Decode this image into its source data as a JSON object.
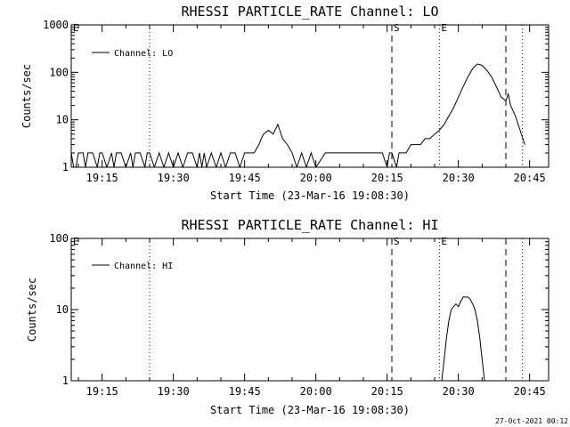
{
  "footer": {
    "timestamp": "27-Oct-2021 00:12"
  },
  "chart_data": [
    {
      "type": "line",
      "title": "RHESSI PARTICLE_RATE Channel: LO",
      "xlabel": "Start Time (23-Mar-16 19:08:30)",
      "ylabel": "Counts/sec",
      "yscale": "log",
      "xlim": [
        "19:08:30",
        "20:49:00"
      ],
      "ylim": [
        1,
        1000
      ],
      "xticks": [
        "19:15",
        "19:30",
        "19:45",
        "20:00",
        "20:15",
        "20:30",
        "20:45"
      ],
      "yticks": [
        "1",
        "10",
        "100",
        "1000"
      ],
      "legend": {
        "position": "top-left",
        "entries": [
          "Channel: LO"
        ]
      },
      "grid": false,
      "markers": [
        {
          "time": "19:08:30",
          "style": "none",
          "label": "E"
        },
        {
          "time": "19:25:00",
          "style": "dotted",
          "label": ""
        },
        {
          "time": "20:16:00",
          "style": "dashed",
          "label": "S"
        },
        {
          "time": "20:26:00",
          "style": "dotted",
          "label": "E"
        },
        {
          "time": "20:40:00",
          "style": "dashed",
          "label": ""
        },
        {
          "time": "20:43:30",
          "style": "dotted",
          "label": ""
        }
      ],
      "series": [
        {
          "name": "Channel: LO",
          "x": [
            "19:08:30",
            "19:09:00",
            "19:09:30",
            "19:10:00",
            "19:11:00",
            "19:11:30",
            "19:12:00",
            "19:13:00",
            "19:14:00",
            "19:14:30",
            "19:15:00",
            "19:16:00",
            "19:17:00",
            "19:17:30",
            "19:18:00",
            "19:19:00",
            "19:20:00",
            "19:21:00",
            "19:21:30",
            "19:22:00",
            "19:23:00",
            "19:24:00",
            "19:24:30",
            "19:25:00",
            "19:26:00",
            "19:27:00",
            "19:28:00",
            "19:29:00",
            "19:30:00",
            "19:31:00",
            "19:32:00",
            "19:33:00",
            "19:34:00",
            "19:35:00",
            "19:35:30",
            "19:36:00",
            "19:36:30",
            "19:37:00",
            "19:38:00",
            "19:39:00",
            "19:40:00",
            "19:41:00",
            "19:42:00",
            "19:43:00",
            "19:44:00",
            "19:45:00",
            "19:46:00",
            "19:47:00",
            "19:48:00",
            "19:48:30",
            "19:49:00",
            "19:50:00",
            "19:51:00",
            "19:52:00",
            "19:53:00",
            "19:54:00",
            "19:55:00",
            "19:56:00",
            "19:57:00",
            "19:58:00",
            "19:59:00",
            "20:00:00",
            "20:02:00",
            "20:04:00",
            "20:05:00",
            "20:06:00",
            "20:07:00",
            "20:08:00",
            "20:09:00",
            "20:10:00",
            "20:11:00",
            "20:12:00",
            "20:13:00",
            "20:14:00",
            "20:15:00",
            "20:15:30",
            "20:16:00",
            "20:17:00",
            "20:17:30",
            "20:18:00",
            "20:19:00",
            "20:20:00",
            "20:21:00",
            "20:22:00",
            "20:23:00",
            "20:24:00",
            "20:25:00",
            "20:26:00",
            "20:27:00",
            "20:28:00",
            "20:29:00",
            "20:30:00",
            "20:31:00",
            "20:32:00",
            "20:33:00",
            "20:34:00",
            "20:35:00",
            "20:36:00",
            "20:37:00",
            "20:38:00",
            "20:39:00",
            "20:40:00",
            "20:40:30",
            "20:41:00",
            "20:42:00",
            "20:43:00",
            "20:44:00"
          ],
          "y": [
            2,
            1,
            1,
            2,
            2,
            1,
            2,
            2,
            1,
            2,
            2,
            1,
            2,
            1,
            2,
            2,
            1,
            2,
            1,
            2,
            2,
            1,
            2,
            2,
            1,
            2,
            1,
            2,
            1,
            2,
            1,
            2,
            2,
            1,
            2,
            1,
            2,
            1,
            2,
            1,
            2,
            1,
            2,
            2,
            1,
            2,
            2,
            2,
            3,
            4,
            5,
            6,
            5,
            8,
            4,
            3,
            2,
            1,
            2,
            1,
            2,
            1,
            2,
            2,
            2,
            2,
            2,
            2,
            2,
            2,
            2,
            2,
            2,
            2,
            1,
            2,
            2,
            1,
            2,
            2,
            2,
            3,
            3,
            3,
            4,
            4,
            5,
            6,
            8,
            12,
            18,
            30,
            50,
            80,
            120,
            150,
            140,
            110,
            80,
            50,
            30,
            25,
            35,
            20,
            12,
            6,
            3
          ]
        }
      ]
    },
    {
      "type": "line",
      "title": "RHESSI PARTICLE_RATE Channel: HI",
      "xlabel": "Start Time (23-Mar-16 19:08:30)",
      "ylabel": "Counts/sec",
      "yscale": "log",
      "xlim": [
        "19:08:30",
        "20:49:00"
      ],
      "ylim": [
        1,
        100
      ],
      "xticks": [
        "19:15",
        "19:30",
        "19:45",
        "20:00",
        "20:15",
        "20:30",
        "20:45"
      ],
      "yticks": [
        "1",
        "10",
        "100"
      ],
      "legend": {
        "position": "top-left",
        "entries": [
          "Channel: HI"
        ]
      },
      "grid": false,
      "markers": [
        {
          "time": "19:08:30",
          "style": "none",
          "label": "E"
        },
        {
          "time": "19:25:00",
          "style": "dotted",
          "label": ""
        },
        {
          "time": "20:16:00",
          "style": "dashed",
          "label": "S"
        },
        {
          "time": "20:26:00",
          "style": "dotted",
          "label": "E"
        },
        {
          "time": "20:40:00",
          "style": "dashed",
          "label": ""
        },
        {
          "time": "20:43:30",
          "style": "dotted",
          "label": ""
        }
      ],
      "series": [
        {
          "name": "Channel: HI",
          "x": [
            "20:26:30",
            "20:27:00",
            "20:27:30",
            "20:28:00",
            "20:28:30",
            "20:29:00",
            "20:29:30",
            "20:30:00",
            "20:30:30",
            "20:31:00",
            "20:31:30",
            "20:32:00",
            "20:32:30",
            "20:33:00",
            "20:33:30",
            "20:34:00",
            "20:34:30",
            "20:35:00",
            "20:35:30"
          ],
          "y": [
            1,
            2,
            4,
            7,
            10,
            11,
            12,
            11,
            13,
            15,
            15,
            15,
            14,
            12,
            10,
            7,
            4,
            2,
            1
          ]
        }
      ]
    }
  ]
}
